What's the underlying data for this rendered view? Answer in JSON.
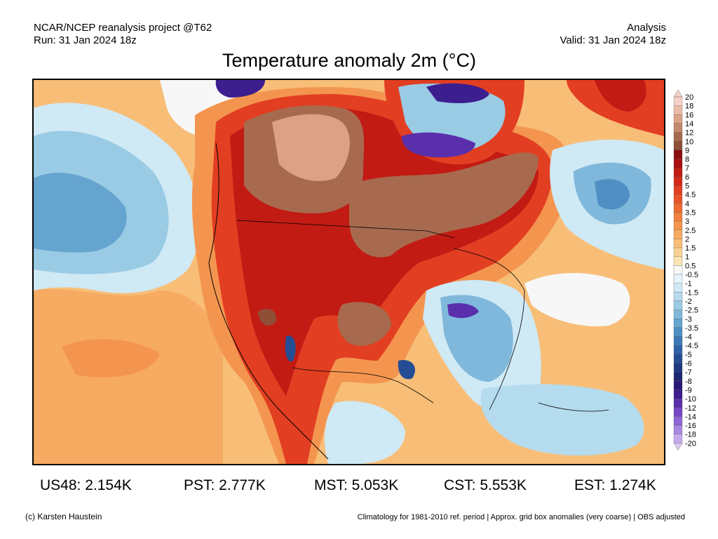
{
  "header": {
    "project": "NCAR/NCEP reanalysis project @T62",
    "run": "Run: 31 Jan 2024 18z",
    "type": "Analysis",
    "valid": "Valid: 31 Jan 2024 18z"
  },
  "title": "Temperature anomaly 2m (°C)",
  "legend": {
    "levels": [
      {
        "label": "20",
        "color": "#f6d0c6"
      },
      {
        "label": "18",
        "color": "#eabba4"
      },
      {
        "label": "16",
        "color": "#dba286"
      },
      {
        "label": "14",
        "color": "#c4876a"
      },
      {
        "label": "12",
        "color": "#a86a4e"
      },
      {
        "label": "10",
        "color": "#8e4f36"
      },
      {
        "label": "9",
        "color": "#8a0e10"
      },
      {
        "label": "8",
        "color": "#a81012"
      },
      {
        "label": "7",
        "color": "#c21b14"
      },
      {
        "label": "6",
        "color": "#d42a1a"
      },
      {
        "label": "5",
        "color": "#e23e22"
      },
      {
        "label": "4.5",
        "color": "#ea5429"
      },
      {
        "label": "4",
        "color": "#ee6a32"
      },
      {
        "label": "3.5",
        "color": "#f28040"
      },
      {
        "label": "3",
        "color": "#f4954f"
      },
      {
        "label": "2.5",
        "color": "#f6aa62"
      },
      {
        "label": "2",
        "color": "#f8be78"
      },
      {
        "label": "1.5",
        "color": "#fad294"
      },
      {
        "label": "1",
        "color": "#fce4b4"
      },
      {
        "label": "0.5",
        "color": "#f7f7f7"
      },
      {
        "label": "-0.5",
        "color": "#e6f4fb"
      },
      {
        "label": "-1",
        "color": "#cfe9f5"
      },
      {
        "label": "-1.5",
        "color": "#b5dbee"
      },
      {
        "label": "-2",
        "color": "#9acbe5"
      },
      {
        "label": "-2.5",
        "color": "#7fb8db"
      },
      {
        "label": "-3",
        "color": "#66a4d0"
      },
      {
        "label": "-3.5",
        "color": "#4f8fc4"
      },
      {
        "label": "-4",
        "color": "#3b79b6"
      },
      {
        "label": "-4.5",
        "color": "#2e62a6"
      },
      {
        "label": "-5",
        "color": "#254d94"
      },
      {
        "label": "-6",
        "color": "#1f3882"
      },
      {
        "label": "-7",
        "color": "#1c2670"
      },
      {
        "label": "-8",
        "color": "#2a1a78"
      },
      {
        "label": "-9",
        "color": "#3c1e8e"
      },
      {
        "label": "-10",
        "color": "#5a2fac"
      },
      {
        "label": "-12",
        "color": "#7447c4"
      },
      {
        "label": "-14",
        "color": "#8e66d6"
      },
      {
        "label": "-16",
        "color": "#a988e2"
      },
      {
        "label": "-18",
        "color": "#c4aaec"
      },
      {
        "label": "-20",
        "color": "#dccaf4"
      }
    ]
  },
  "stats": [
    {
      "label": "US48: 2.154K"
    },
    {
      "label": "PST: 2.777K"
    },
    {
      "label": "MST: 5.053K"
    },
    {
      "label": "CST: 5.553K"
    },
    {
      "label": "EST: 1.274K"
    }
  ],
  "footer": {
    "credit": "(c) Karsten Haustein",
    "note": "Climatology for 1981-2010 ref. period | Approx. grid box anomalies (very coarse) | OBS adjusted"
  }
}
